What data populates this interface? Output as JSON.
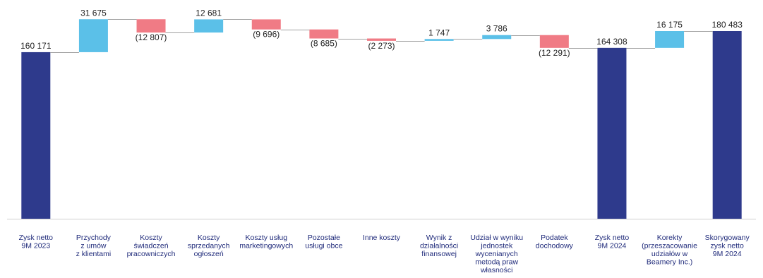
{
  "chart_data": {
    "type": "bar",
    "subtype": "waterfall",
    "categories": [
      [
        "Zysk netto",
        "9M 2023"
      ],
      [
        "Przychody",
        "z umów",
        "z klientami"
      ],
      [
        "Koszty",
        "świadczeń",
        "pracowniczych"
      ],
      [
        "Koszty",
        "sprzedanych",
        "ogłoszeń"
      ],
      [
        "Koszty usług",
        "marketingowych"
      ],
      [
        "Pozostałe",
        "usługi obce"
      ],
      [
        "Inne koszty"
      ],
      [
        "Wynik z",
        "działalności",
        "finansowej"
      ],
      [
        "Udział w wyniku",
        "jednostek",
        "wycenianych",
        "metodą praw",
        "własności"
      ],
      [
        "Podatek",
        "dochodowy"
      ],
      [
        "Zysk netto",
        "9M 2024"
      ],
      [
        "Korekty",
        "(przeszacowanie",
        "udziałów w",
        "Beamery Inc.)"
      ],
      [
        "Skorygowany",
        "zysk netto",
        "9M 2024"
      ]
    ],
    "values": [
      160171,
      31675,
      -12807,
      12681,
      -9696,
      -8685,
      -2273,
      1747,
      3786,
      -12291,
      164308,
      16175,
      180483
    ],
    "kinds": [
      "total",
      "delta",
      "delta",
      "delta",
      "delta",
      "delta",
      "delta",
      "delta",
      "delta",
      "delta",
      "total",
      "delta",
      "total"
    ],
    "value_labels": [
      "160 171",
      "31 675",
      "(12 807)",
      "12 681",
      "(9 696)",
      "(8 685)",
      "(2 273)",
      "1 747",
      "3 786",
      "(12 291)",
      "164 308",
      "16 175",
      "180 483"
    ],
    "ylim": [
      0,
      185000
    ],
    "colors": {
      "total": "#2e3a8c",
      "increase": "#5bc0e8",
      "decrease": "#f07b85",
      "connector": "#a0a0a0",
      "category_text": "#1f2a7a",
      "value_text": "#222222"
    },
    "grid": false,
    "legend": "none"
  }
}
